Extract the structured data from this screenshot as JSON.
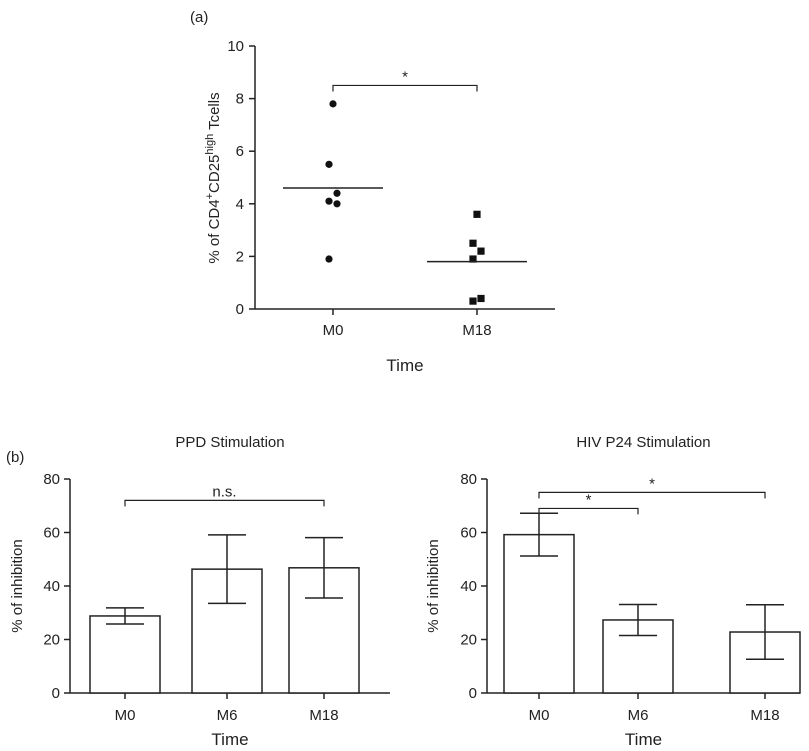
{
  "panel_labels": {
    "a": "(a)",
    "b": "(b)"
  },
  "chart_data": [
    {
      "type": "scatter",
      "panel": "a",
      "title": "",
      "xlabel": "Time",
      "ylabel_parts": [
        "% of CD4",
        "+",
        "CD25",
        "high",
        " Tcells"
      ],
      "categories": [
        "M0",
        "M18"
      ],
      "ylim": [
        0,
        10
      ],
      "yticks": [
        0,
        2,
        4,
        6,
        8,
        10
      ],
      "series": [
        {
          "category": "M0",
          "marker": "circle",
          "values": [
            7.8,
            5.5,
            4.4,
            4.1,
            4.0,
            1.9
          ],
          "mean": 4.6
        },
        {
          "category": "M18",
          "marker": "square",
          "values": [
            3.6,
            2.5,
            2.2,
            1.9,
            0.4,
            0.3
          ],
          "mean": 1.8
        }
      ],
      "significance": [
        {
          "from": "M0",
          "to": "M18",
          "label": "*",
          "y": 8.5
        }
      ]
    },
    {
      "type": "bar",
      "panel": "b-left",
      "title": "PPD Stimulation",
      "xlabel": "Time",
      "ylabel": "% of inhibition",
      "categories": [
        "M0",
        "M6",
        "M18"
      ],
      "values": [
        28.8,
        46.3,
        46.8
      ],
      "error": [
        3.0,
        12.8,
        11.3
      ],
      "ylim": [
        0,
        80
      ],
      "yticks": [
        0,
        20,
        40,
        60,
        80
      ],
      "significance": [
        {
          "from": "M0",
          "to": "M18",
          "label": "n.s.",
          "y": 72
        }
      ]
    },
    {
      "type": "bar",
      "panel": "b-right",
      "title": "HIV P24 Stimulation",
      "xlabel": "Time",
      "ylabel": "% of inhibition",
      "categories": [
        "M0",
        "M6",
        "M18"
      ],
      "values": [
        59.2,
        27.3,
        22.8
      ],
      "error": [
        8.0,
        5.8,
        10.2
      ],
      "ylim": [
        0,
        80
      ],
      "yticks": [
        0,
        20,
        40,
        60,
        80
      ],
      "significance": [
        {
          "from": "M0",
          "to": "M6",
          "label": "*",
          "y": 69
        },
        {
          "from": "M0",
          "to": "M18",
          "label": "*",
          "y": 75
        }
      ]
    }
  ]
}
